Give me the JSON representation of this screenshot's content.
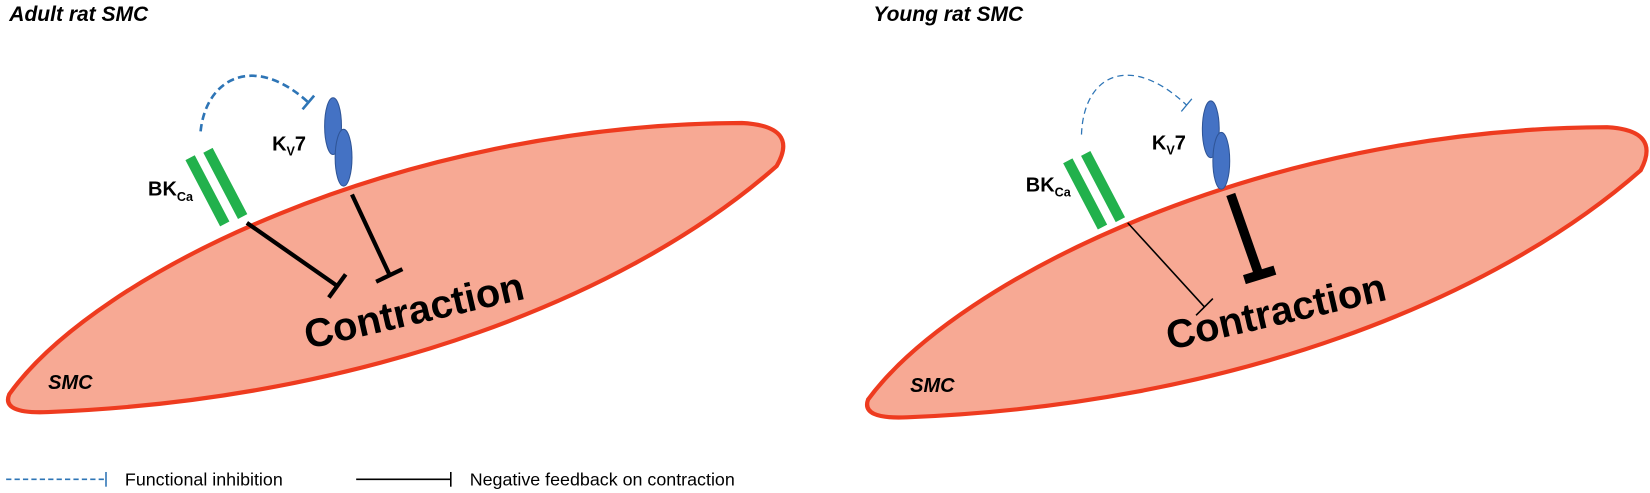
{
  "panels": [
    {
      "title": "Adult rat SMC",
      "cell_label": "SMC",
      "bk": {
        "main": "BK",
        "sub": "Ca"
      },
      "kv": {
        "main": "K",
        "sub": "V",
        "suffix": "7"
      },
      "outcome": "Contraction"
    },
    {
      "title": "Young rat SMC",
      "cell_label": "SMC",
      "bk": {
        "main": "BK",
        "sub": "Ca"
      },
      "kv": {
        "main": "K",
        "sub": "V",
        "suffix": "7"
      },
      "outcome": "Contraction"
    }
  ],
  "legend": [
    {
      "label": "Functional inhibition"
    },
    {
      "label": "Negative feedback on contraction"
    }
  ]
}
